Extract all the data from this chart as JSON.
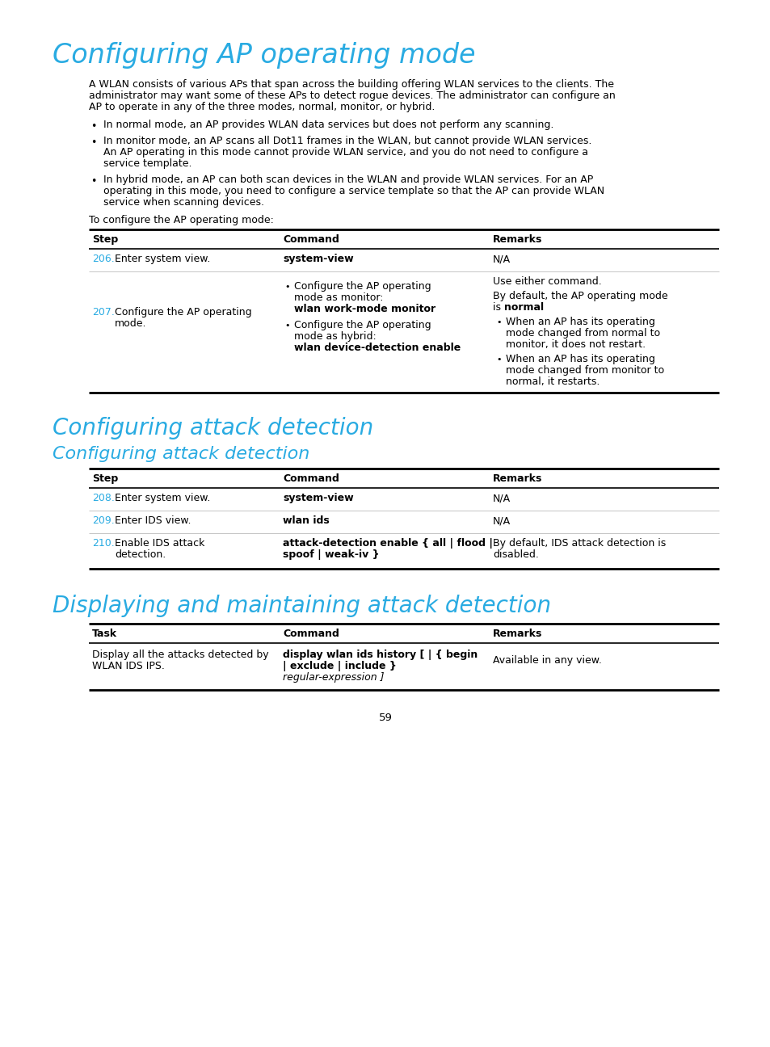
{
  "bg_color": "#ffffff",
  "cyan_color": "#29abe2",
  "black_color": "#000000",
  "page_number": "59",
  "title1": "Configuring AP operating mode",
  "title2": "Configuring attack detection",
  "title3": "Configuring attack detection",
  "title4": "Displaying and maintaining attack detection",
  "intro_text_lines": [
    "A WLAN consists of various APs that span across the building offering WLAN services to the clients. The",
    "administrator may want some of these APs to detect rogue devices. The administrator can configure an",
    "AP to operate in any of the three modes, normal, monitor, or hybrid."
  ],
  "bullet1": "In normal mode, an AP provides WLAN data services but does not perform any scanning.",
  "bullet2_lines": [
    "In monitor mode, an AP scans all Dot11 frames in the WLAN, but cannot provide WLAN services.",
    "An AP operating in this mode cannot provide WLAN service, and you do not need to configure a",
    "service template."
  ],
  "bullet3_lines": [
    "In hybrid mode, an AP can both scan devices in the WLAN and provide WLAN services. For an AP",
    "operating in this mode, you need to configure a service template so that the AP can provide WLAN",
    "service when scanning devices."
  ],
  "to_configure": "To configure the AP operating mode:",
  "table1_header": [
    "Step",
    "Command",
    "Remarks"
  ],
  "table2_header": [
    "Step",
    "Command",
    "Remarks"
  ],
  "table3_header": [
    "Task",
    "Command",
    "Remarks"
  ]
}
